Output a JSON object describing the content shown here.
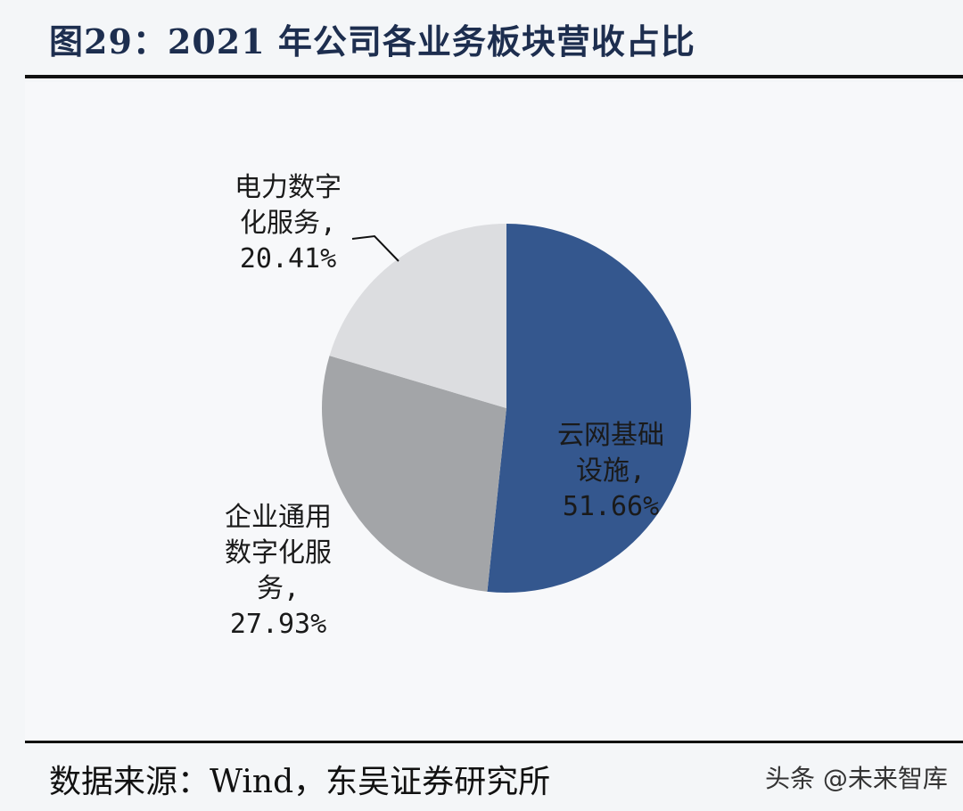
{
  "header": {
    "title": "图29：2021 年公司各业务板块营收占比"
  },
  "footer": {
    "source": "数据来源：Wind，东吴证券研究所",
    "watermark": "头条 @未来智库"
  },
  "chart_data": {
    "type": "pie",
    "title": "图29：2021 年公司各业务板块营收占比",
    "start_angle_deg": 0,
    "direction": "clockwise",
    "slices": [
      {
        "label_lines": [
          "云网基础",
          "设施,",
          "51.66%"
        ],
        "value": 51.66,
        "color": "#34578e",
        "label_color": "#1a1a1a"
      },
      {
        "label_lines": [
          "企业通用",
          "数字化服",
          "务,",
          "27.93%"
        ],
        "value": 27.93,
        "color": "#a3a5a8",
        "label_color": "#1a1a1a"
      },
      {
        "label_lines": [
          "电力数字",
          "化服务,",
          "20.41%"
        ],
        "value": 20.41,
        "color": "#dcdde0",
        "label_color": "#1a1a1a"
      }
    ]
  }
}
